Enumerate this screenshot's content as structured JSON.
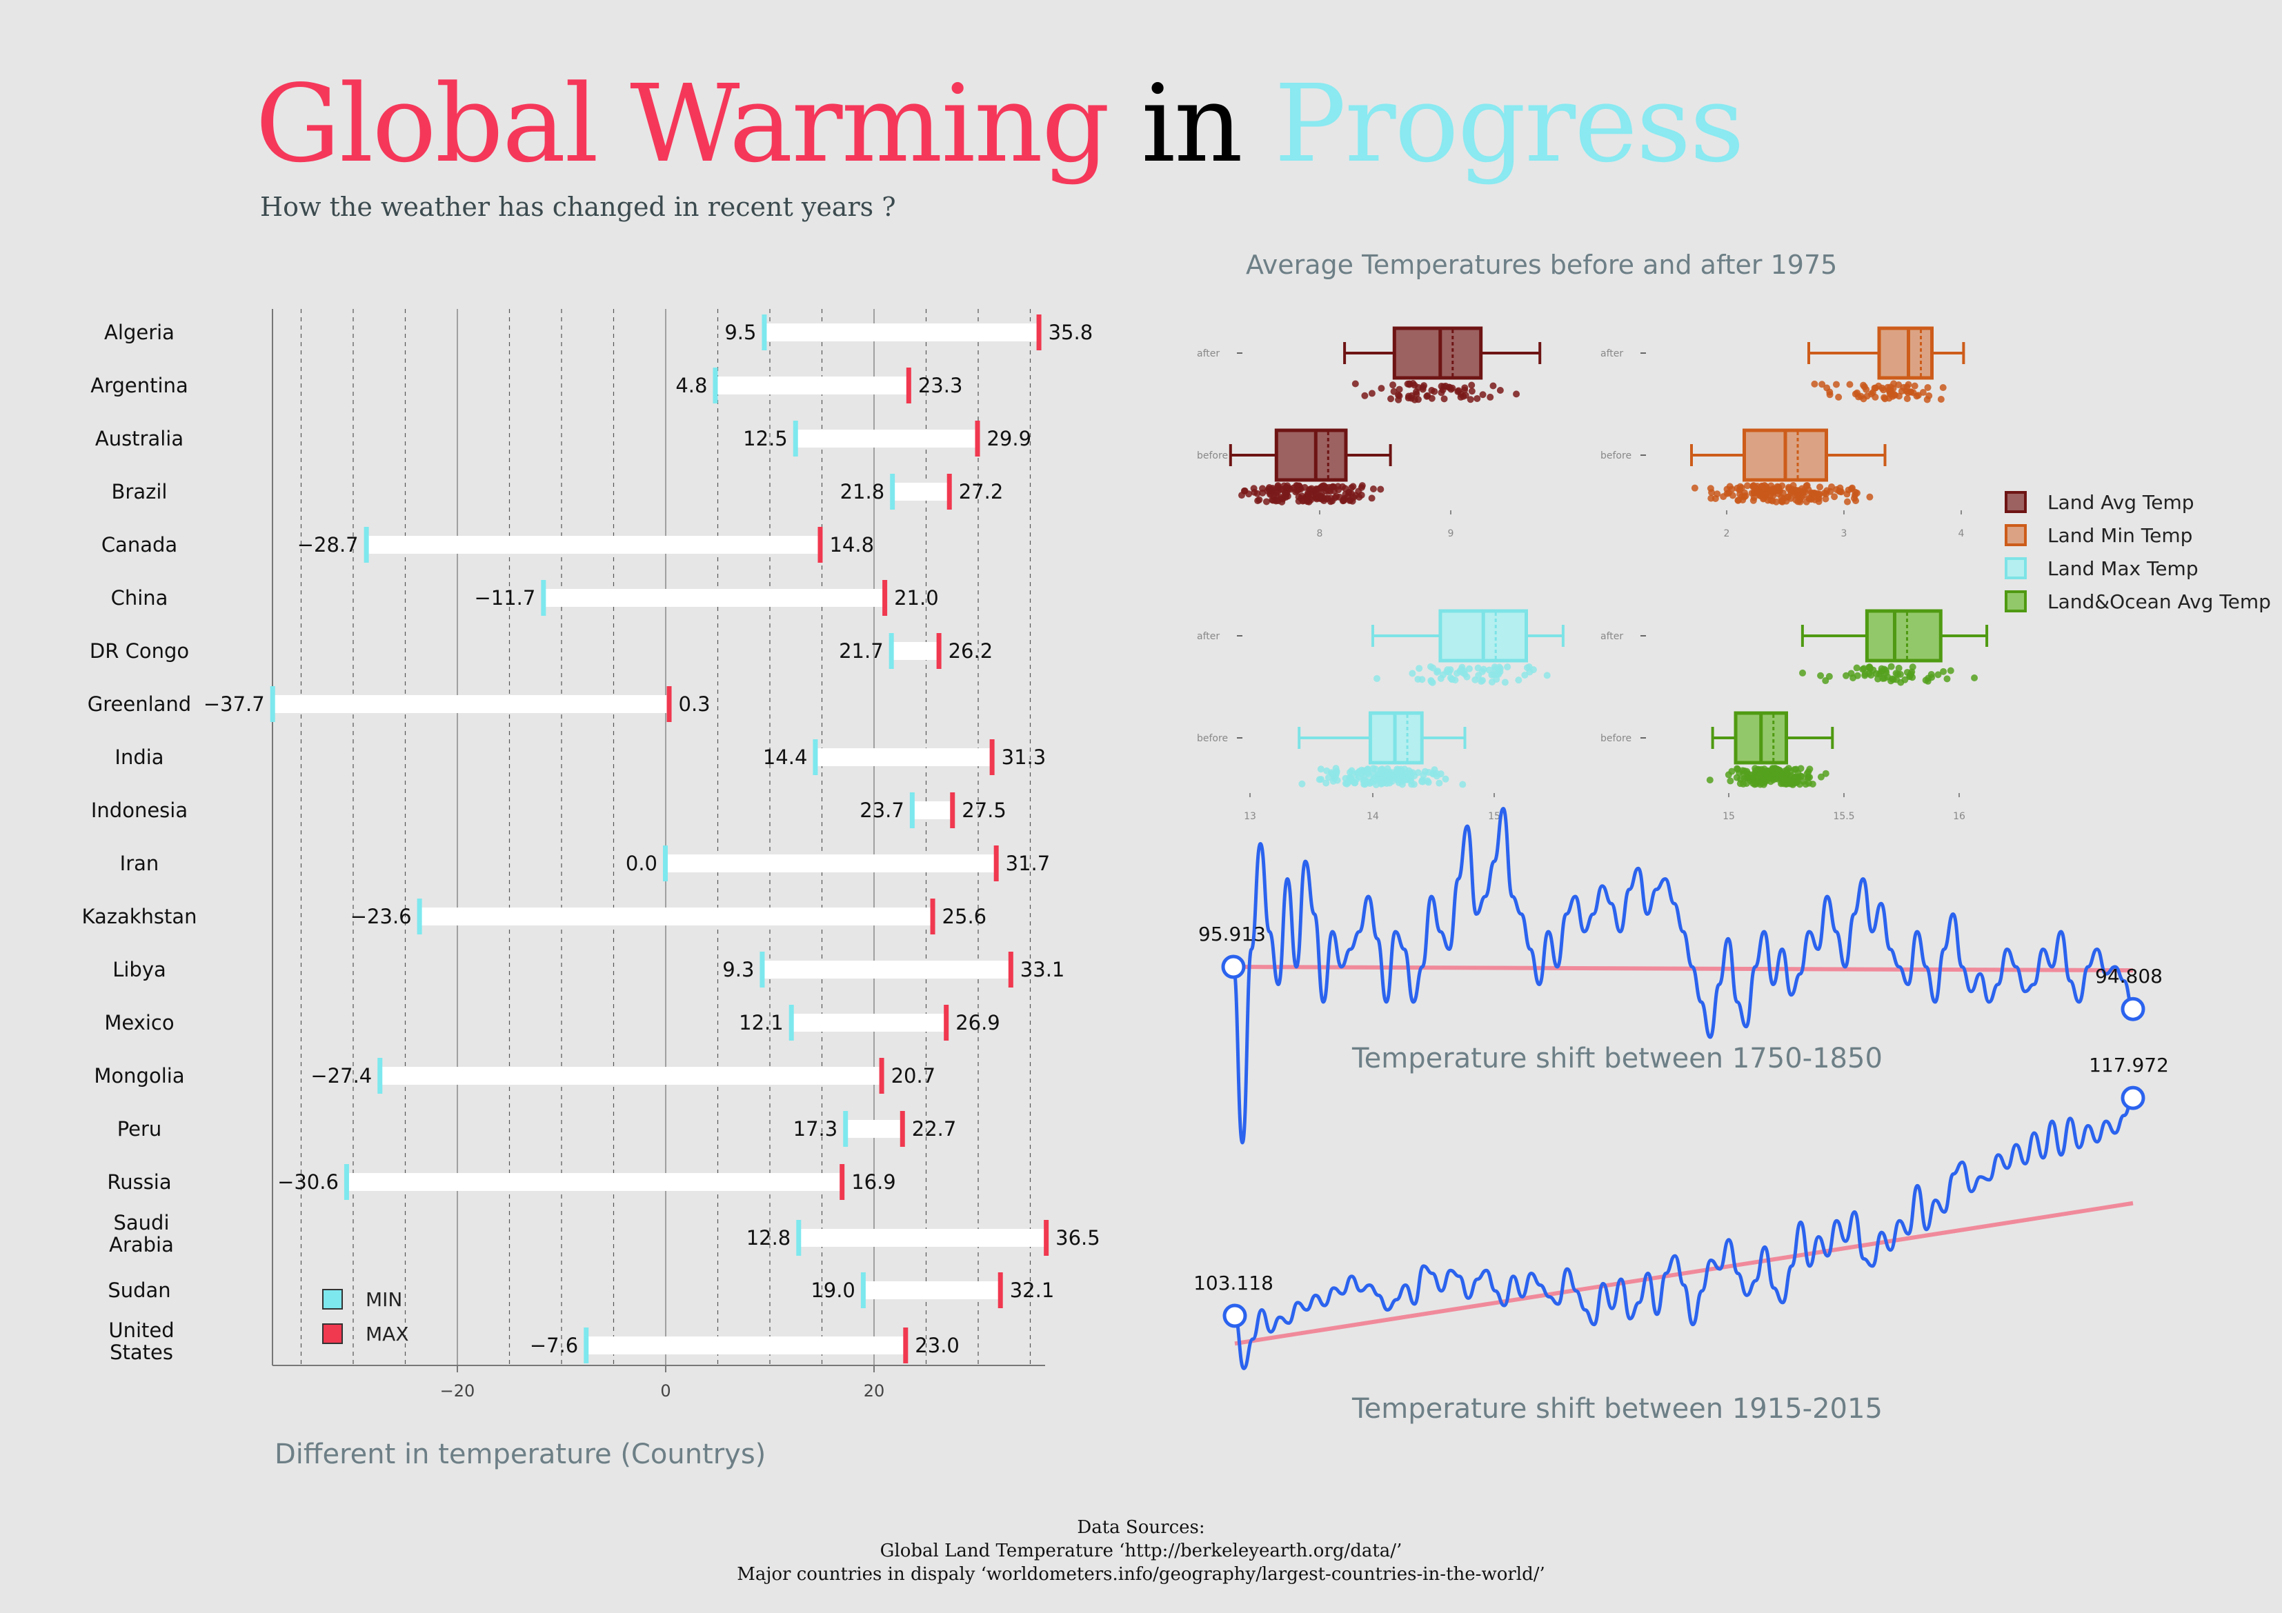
{
  "title": {
    "part1": "Global Warming",
    "part2": "in",
    "part3": "Progress",
    "color1": "#f5385a",
    "color2": "#000000",
    "color3": "#8ae9f1"
  },
  "subtitle": "How the weather has changed in recent years ?",
  "sources": {
    "heading": "Data Sources:",
    "line1": "Global Land Temperature   ‘http://berkeleyearth.org/data/’",
    "line2": "Major countries in dispaly   ‘worldometers.info/geography/largest-countries-in-the-world/’"
  },
  "chart_data": [
    {
      "type": "bar",
      "id": "range",
      "xlabel": "Different in temperature (Countrys)",
      "xlim": [
        -38,
        37
      ],
      "xticks": [
        -20,
        0,
        20
      ],
      "categories": [
        "Algeria",
        "Argentina",
        "Australia",
        "Brazil",
        "Canada",
        "China",
        "DR Congo",
        "Greenland",
        "India",
        "Indonesia",
        "Iran",
        "Kazakhstan",
        "Libya",
        "Mexico",
        "Mongolia",
        "Peru",
        "Russia",
        "Saudi Arabia",
        "Sudan",
        "United States"
      ],
      "min": [
        9.5,
        4.8,
        12.5,
        21.8,
        -28.7,
        -11.7,
        21.7,
        -37.7,
        14.4,
        23.7,
        0.0,
        -23.6,
        9.3,
        12.1,
        -27.4,
        17.3,
        -30.6,
        12.8,
        19.0,
        -7.6
      ],
      "max": [
        35.8,
        23.3,
        29.9,
        27.2,
        14.8,
        21.0,
        26.2,
        0.3,
        31.3,
        27.5,
        31.7,
        25.6,
        33.1,
        26.9,
        20.7,
        22.7,
        16.9,
        36.5,
        32.1,
        23.0
      ],
      "legend": [
        {
          "label": "MIN",
          "color": "#7de8ee"
        },
        {
          "label": "MAX",
          "color": "#f0384f"
        }
      ]
    },
    {
      "type": "box",
      "id": "boxes",
      "title": "Average Temperatures before and after 1975",
      "categories": [
        "after",
        "before"
      ],
      "legend": [
        {
          "label": "Land Avg Temp",
          "color": "#8b3a3a"
        },
        {
          "label": "Land Min Temp",
          "color": "#d2691e"
        },
        {
          "label": "Land Max Temp",
          "color": "#8ae6e8"
        },
        {
          "label": "Land&Ocean Avg Temp",
          "color": "#5aa02c"
        }
      ],
      "panels": [
        {
          "series": "Land Avg Temp",
          "xticks": [
            "8",
            "9"
          ],
          "after": {
            "min": 8.19,
            "q1": 8.57,
            "median": 8.92,
            "q3": 9.23,
            "max": 9.68
          },
          "before": {
            "min": 7.32,
            "q1": 7.67,
            "median": 7.97,
            "q3": 8.2,
            "max": 8.54
          }
        },
        {
          "series": "Land Min Temp",
          "xticks": [
            "2",
            "3",
            "4"
          ],
          "after": {
            "min": 2.7,
            "q1": 3.3,
            "median": 3.55,
            "q3": 3.75,
            "max": 4.02
          },
          "before": {
            "min": 1.7,
            "q1": 2.15,
            "median": 2.5,
            "q3": 2.85,
            "max": 3.35
          }
        },
        {
          "series": "Land Max Temp",
          "xticks": [
            "13",
            "14",
            "15"
          ],
          "after": {
            "min": 14.0,
            "q1": 14.55,
            "median": 14.9,
            "q3": 15.25,
            "max": 15.55
          },
          "before": {
            "min": 13.4,
            "q1": 13.98,
            "median": 14.18,
            "q3": 14.4,
            "max": 14.75
          }
        },
        {
          "series": "Land&Ocean Avg Temp",
          "xticks": [
            "15",
            "15.5",
            "16"
          ],
          "after": {
            "min": 15.32,
            "q1": 15.6,
            "median": 15.72,
            "q3": 15.92,
            "max": 16.12
          },
          "before": {
            "min": 14.93,
            "q1": 15.03,
            "median": 15.14,
            "q3": 15.25,
            "max": 15.45
          }
        }
      ]
    },
    {
      "type": "line",
      "id": "shift1",
      "title": "Temperature shift between 1750-1850",
      "x_start": 1750,
      "x_end": 1850,
      "start_label": "95.913",
      "end_label": "94.808",
      "y": [
        96,
        91,
        96.5,
        99.5,
        97,
        95.5,
        98.5,
        96,
        99,
        97.5,
        95,
        97,
        96,
        96.5,
        97,
        98,
        96.8,
        95,
        97,
        96.5,
        95,
        96,
        98,
        97,
        96.5,
        98.5,
        100,
        97.5,
        98,
        99,
        100.5,
        98,
        97.5,
        96.5,
        95.5,
        97,
        96,
        97.5,
        98,
        97,
        97.5,
        98.3,
        97.8,
        97,
        98.2,
        98.8,
        97.5,
        98.2,
        98.5,
        97.8,
        97,
        96,
        95,
        94,
        95.5,
        96.8,
        95,
        94.3,
        96,
        97,
        95.5,
        96.5,
        95.2,
        95.8,
        97,
        96.5,
        98,
        97,
        96,
        97.5,
        98.5,
        97,
        97.8,
        96.5,
        96,
        95.5,
        97,
        96,
        95,
        96.5,
        97.5,
        96,
        95.3,
        95.8,
        95,
        95.5,
        96.5,
        96,
        95.3,
        95.5,
        96.5,
        96,
        97,
        95.6,
        95,
        96,
        96.5,
        95.8,
        96,
        95.6,
        94.8
      ],
      "trend": [
        96,
        95.9
      ]
    },
    {
      "type": "line",
      "id": "shift2",
      "title": "Temperature shift between 1915-2015",
      "x_start": 1915,
      "x_end": 2015,
      "start_label": "103.118",
      "end_label": "117.972",
      "y": [
        103.1,
        99.5,
        101.5,
        103.5,
        102,
        103,
        102.6,
        104,
        103.5,
        104.5,
        103.8,
        105,
        104.6,
        105.8,
        104.8,
        105.2,
        104.5,
        103.5,
        104.2,
        105.2,
        103.9,
        106.5,
        106,
        104.8,
        106.2,
        105.8,
        104.3,
        105.6,
        106.2,
        104.8,
        103.8,
        105.8,
        104.4,
        106,
        105.2,
        104.4,
        103.9,
        106.3,
        104.8,
        103.5,
        102.5,
        105.3,
        103.6,
        105.6,
        102.9,
        104,
        106,
        103.2,
        106,
        107.2,
        105.2,
        102.5,
        104.8,
        106.9,
        106.3,
        108.3,
        106,
        104.5,
        105.5,
        107.8,
        105,
        104,
        106.5,
        109.5,
        106.5,
        108.5,
        107.2,
        109.6,
        108.2,
        110.2,
        107,
        106.5,
        108.8,
        107.6,
        109.6,
        108.7,
        112,
        109,
        111,
        110.2,
        112.8,
        113.6,
        111.6,
        112.6,
        112.4,
        114.1,
        113.2,
        114.8,
        113.5,
        115.6,
        113.9,
        116.4,
        114.1,
        116.6,
        114.6,
        116.1,
        115,
        116.4,
        115.6,
        116.8,
        118
      ],
      "trend": [
        101.2,
        110.8
      ]
    }
  ]
}
